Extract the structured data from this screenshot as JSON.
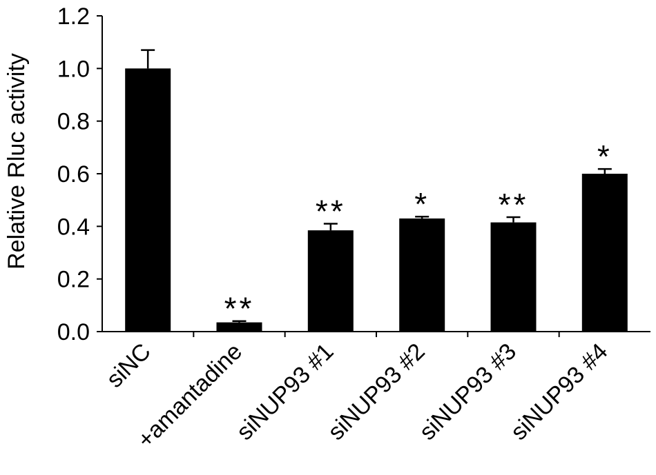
{
  "chart_data": {
    "type": "bar",
    "title": "",
    "xlabel": "",
    "ylabel": "Relative Rluc activity",
    "ylim": [
      0,
      1.2
    ],
    "yticks": [
      "0.0",
      "0.2",
      "0.4",
      "0.6",
      "0.8",
      "1.0",
      "1.2"
    ],
    "ytick_values": [
      0,
      0.2,
      0.4,
      0.6,
      0.8,
      1.0,
      1.2
    ],
    "categories": [
      "siNC",
      "+amantadine",
      "siNUP93 #1",
      "siNUP93 #2",
      "siNUP93 #3",
      "siNUP93 #4"
    ],
    "values": [
      1.0,
      0.035,
      0.385,
      0.43,
      0.415,
      0.6
    ],
    "errors": [
      0.07,
      0.005,
      0.025,
      0.007,
      0.02,
      0.018
    ],
    "significance": [
      "",
      "**",
      "**",
      "*",
      "**",
      "*"
    ],
    "grid": false,
    "legend": "none",
    "bar_color": "#000000"
  }
}
